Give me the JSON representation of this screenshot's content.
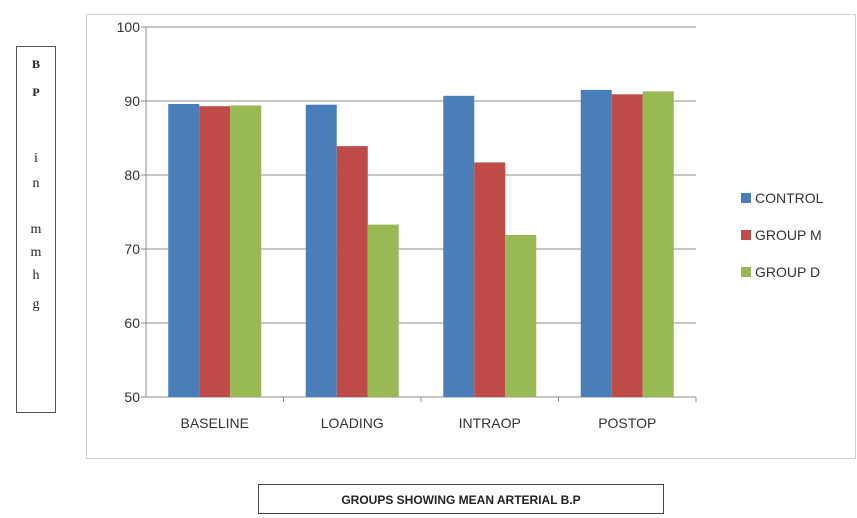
{
  "chart_data": {
    "type": "bar",
    "title": "GROUPS SHOWING MEAN ARTERIAL B.P",
    "ylabel": "B P i n m m h g",
    "ylabel_lines": [
      "B",
      "P",
      "i",
      "n",
      "m",
      "m",
      "h",
      "g"
    ],
    "xlabel": "",
    "categories": [
      "BASELINE",
      "LOADING",
      "INTRAOP",
      "POSTOP"
    ],
    "series": [
      {
        "name": "CONTROL",
        "color": "#4a7ebb",
        "values": [
          89.6,
          89.5,
          90.7,
          91.5
        ]
      },
      {
        "name": "GROUP M",
        "color": "#be4b48",
        "values": [
          89.3,
          83.9,
          81.7,
          90.9
        ]
      },
      {
        "name": "GROUP D",
        "color": "#98b954",
        "values": [
          89.4,
          73.3,
          71.9,
          91.3
        ]
      }
    ],
    "ylim": [
      50,
      100
    ],
    "yticks": [
      50,
      60,
      70,
      80,
      90,
      100
    ],
    "grid": true,
    "legend": "right"
  }
}
